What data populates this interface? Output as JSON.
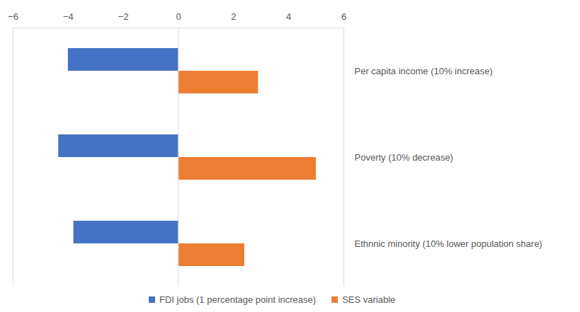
{
  "chart_data": {
    "type": "bar",
    "orientation": "horizontal",
    "categories": [
      "Per capita income (10% increase)",
      "Poverty (10% decrease)",
      "Ethnnic minority (10% lower population share)"
    ],
    "series": [
      {
        "name": "FDI jobs (1 percentage point increase)",
        "color": "#4472c4",
        "values": [
          -4.0,
          -4.35,
          -3.8
        ]
      },
      {
        "name": "SES variable",
        "color": "#ed7d31",
        "values": [
          2.9,
          5.0,
          2.4
        ]
      }
    ],
    "xlim": [
      -6,
      6
    ],
    "xticks": [
      -6,
      -4,
      -2,
      0,
      2,
      4,
      6
    ],
    "grid": false,
    "legend": "bottom"
  }
}
